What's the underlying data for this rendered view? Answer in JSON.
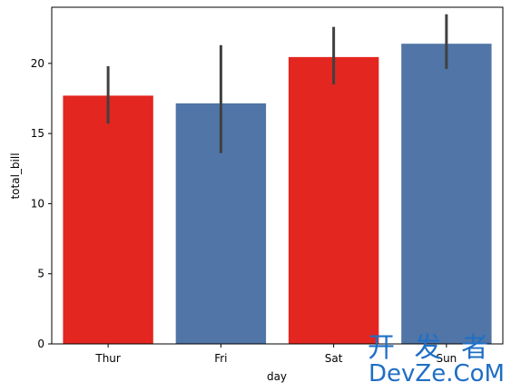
{
  "chart_data": {
    "type": "bar",
    "title": "",
    "xlabel": "day",
    "ylabel": "total_bill",
    "categories": [
      "Thur",
      "Fri",
      "Sat",
      "Sun"
    ],
    "values": [
      17.7,
      17.15,
      20.45,
      21.4
    ],
    "error_low": [
      15.7,
      13.6,
      18.5,
      19.6
    ],
    "error_high": [
      19.8,
      21.3,
      22.6,
      23.5
    ],
    "bar_colors": [
      "#e3261f",
      "#5075a6",
      "#e3261f",
      "#5075a6"
    ],
    "error_color": "#404040",
    "ylim": [
      0,
      24
    ],
    "yticks": [
      0,
      5,
      10,
      15,
      20
    ],
    "grid": false,
    "legend": "none"
  },
  "watermark": {
    "line1": "开 发 者",
    "line2": "DevZe.CoM"
  }
}
